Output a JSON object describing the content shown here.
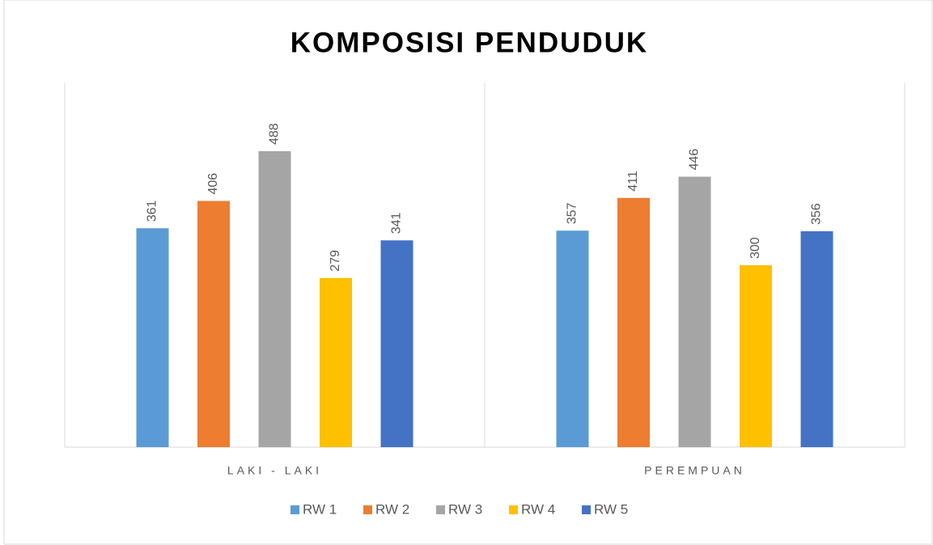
{
  "chart_data": {
    "type": "bar",
    "title": "KOMPOSISI PENDUDUK",
    "categories": [
      "LAKI - LAKI",
      "PEREMPUAN"
    ],
    "series": [
      {
        "name": "RW 1",
        "color": "#5b9bd5",
        "values": [
          361,
          357
        ]
      },
      {
        "name": "RW 2",
        "color": "#ed7d31",
        "values": [
          406,
          411
        ]
      },
      {
        "name": "RW 3",
        "color": "#a5a5a5",
        "values": [
          488,
          446
        ]
      },
      {
        "name": "RW 4",
        "color": "#ffc000",
        "values": [
          279,
          300
        ]
      },
      {
        "name": "RW 5",
        "color": "#4472c4",
        "values": [
          341,
          356
        ]
      }
    ],
    "ylim": [
      0,
      600
    ],
    "legend": "bottom"
  }
}
